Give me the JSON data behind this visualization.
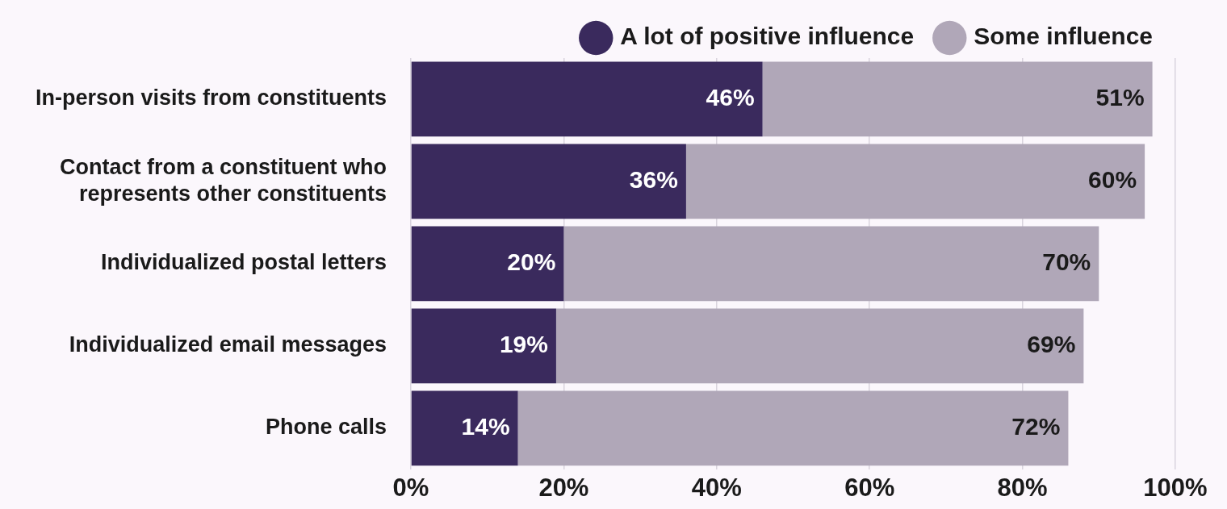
{
  "chart_data": {
    "type": "bar",
    "orientation": "horizontal",
    "stacked": true,
    "categories": [
      "In-person visits from constituents",
      "Contact from a constituent who represents other constituents",
      "Individualized postal letters",
      "Individualized email messages",
      "Phone calls"
    ],
    "series": [
      {
        "name": "A lot of positive influence",
        "color": "#3a2a5d",
        "values": [
          46,
          36,
          20,
          19,
          14
        ],
        "value_labels": [
          "46%",
          "36%",
          "20%",
          "19%",
          "14%"
        ]
      },
      {
        "name": "Some influence",
        "color": "#b0a7b8",
        "values": [
          51,
          60,
          70,
          69,
          72
        ],
        "value_labels": [
          "51%",
          "60%",
          "70%",
          "69%",
          "72%"
        ]
      }
    ],
    "xlim": [
      0,
      100
    ],
    "xticks": [
      {
        "value": 0,
        "label": "0%"
      },
      {
        "value": 20,
        "label": "20%"
      },
      {
        "value": 40,
        "label": "40%"
      },
      {
        "value": 60,
        "label": "60%"
      },
      {
        "value": 80,
        "label": "80%"
      },
      {
        "value": 100,
        "label": "100%"
      }
    ],
    "grid": "x",
    "legend": "top right"
  }
}
